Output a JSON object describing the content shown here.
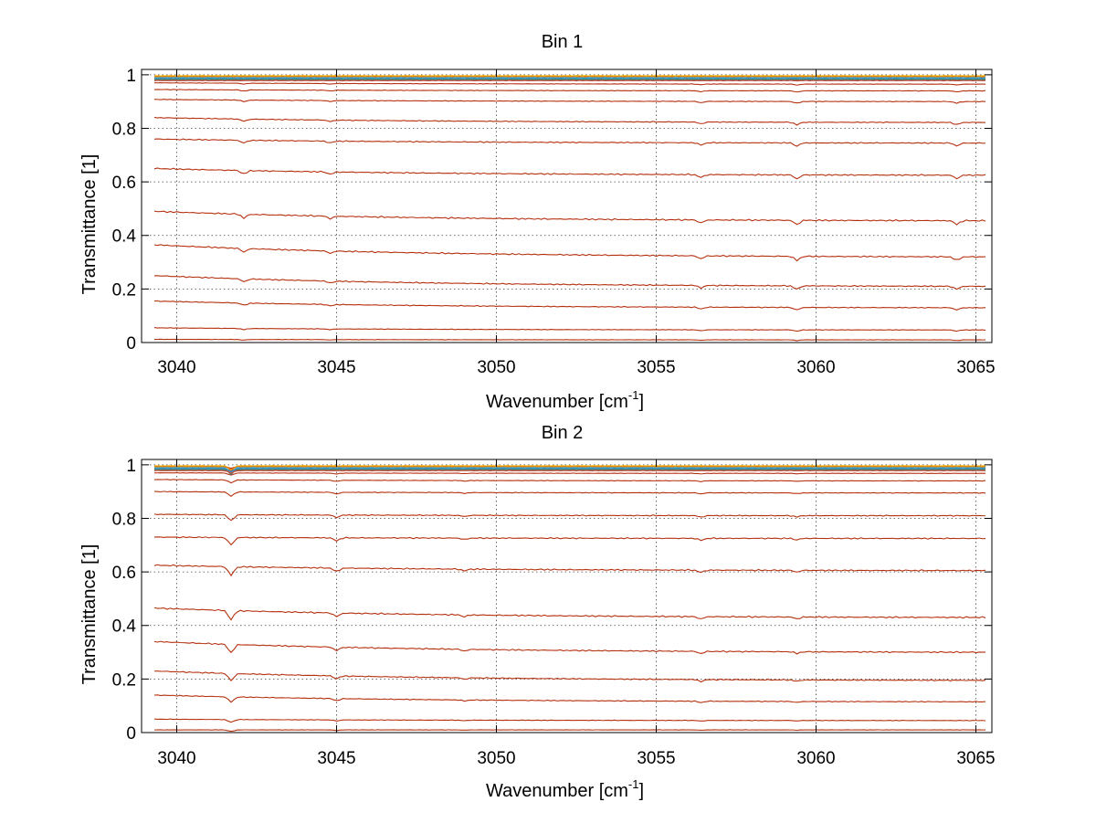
{
  "figure": {
    "background": "#ffffff"
  },
  "chart_data": [
    {
      "type": "line",
      "title": "Bin 1",
      "xlabel": "Wavenumber [cm",
      "xlabel_sup": "-1",
      "xlabel_end": "]",
      "ylabel": "Transmittance [1]",
      "xlim": [
        3038.9,
        3065.5
      ],
      "ylim": [
        0,
        1.02
      ],
      "xticks": [
        3040,
        3045,
        3050,
        3055,
        3060,
        3065
      ],
      "yticks": [
        0,
        0.2,
        0.4,
        0.6,
        0.8,
        1
      ],
      "ytick_labels": [
        "0",
        "0.2",
        "0.4",
        "0.6",
        "0.8",
        "1"
      ],
      "grid": true,
      "x_start": 3039.3,
      "x_end": 3065.3,
      "line_color": "#b5300f",
      "top_colors": [
        "#f5b000",
        "#e07800",
        "#47b0d8",
        "#3c7fc0",
        "#2e9a6a",
        "#c5453a"
      ],
      "series": [
        {
          "start": 0.012,
          "end": 0.01
        },
        {
          "start": 0.055,
          "end": 0.047
        },
        {
          "start": 0.155,
          "end": 0.13
        },
        {
          "start": 0.25,
          "end": 0.21
        },
        {
          "start": 0.365,
          "end": 0.32
        },
        {
          "start": 0.49,
          "end": 0.455
        },
        {
          "start": 0.65,
          "end": 0.625
        },
        {
          "start": 0.76,
          "end": 0.745
        },
        {
          "start": 0.84,
          "end": 0.822
        },
        {
          "start": 0.908,
          "end": 0.9
        },
        {
          "start": 0.945,
          "end": 0.94
        },
        {
          "start": 0.97,
          "end": 0.965
        },
        {
          "start": 0.985,
          "end": 0.98
        },
        {
          "start": 0.993,
          "end": 0.99
        }
      ],
      "dips": [
        {
          "x": 3042.1,
          "depth": 0.012
        },
        {
          "x": 3044.8,
          "depth": 0.008
        },
        {
          "x": 3056.4,
          "depth": 0.01
        },
        {
          "x": 3059.4,
          "depth": 0.014
        },
        {
          "x": 3064.4,
          "depth": 0.012
        }
      ]
    },
    {
      "type": "line",
      "title": "Bin 2",
      "xlabel": "Wavenumber [cm",
      "xlabel_sup": "-1",
      "xlabel_end": "]",
      "ylabel": "Transmittance [1]",
      "xlim": [
        3038.9,
        3065.5
      ],
      "ylim": [
        0,
        1.02
      ],
      "xticks": [
        3040,
        3045,
        3050,
        3055,
        3060,
        3065
      ],
      "yticks": [
        0,
        0.2,
        0.4,
        0.6,
        0.8,
        1
      ],
      "ytick_labels": [
        "0",
        "0.2",
        "0.4",
        "0.6",
        "0.8",
        "1"
      ],
      "grid": true,
      "x_start": 3039.3,
      "x_end": 3065.3,
      "line_color": "#b5300f",
      "top_colors": [
        "#f5b000",
        "#e07800",
        "#47b0d8",
        "#3c7fc0",
        "#2e9a6a",
        "#c5453a"
      ],
      "series": [
        {
          "start": 0.01,
          "end": 0.01
        },
        {
          "start": 0.05,
          "end": 0.045
        },
        {
          "start": 0.14,
          "end": 0.115
        },
        {
          "start": 0.23,
          "end": 0.195
        },
        {
          "start": 0.34,
          "end": 0.3
        },
        {
          "start": 0.465,
          "end": 0.43
        },
        {
          "start": 0.625,
          "end": 0.605
        },
        {
          "start": 0.73,
          "end": 0.725
        },
        {
          "start": 0.815,
          "end": 0.81
        },
        {
          "start": 0.9,
          "end": 0.895
        },
        {
          "start": 0.945,
          "end": 0.94
        },
        {
          "start": 0.97,
          "end": 0.968
        },
        {
          "start": 0.985,
          "end": 0.983
        },
        {
          "start": 0.993,
          "end": 0.992
        }
      ],
      "dips": [
        {
          "x": 3041.7,
          "depth": 0.03
        },
        {
          "x": 3045.0,
          "depth": 0.012
        },
        {
          "x": 3049.0,
          "depth": 0.006
        },
        {
          "x": 3056.4,
          "depth": 0.008
        },
        {
          "x": 3059.4,
          "depth": 0.006
        }
      ]
    }
  ]
}
